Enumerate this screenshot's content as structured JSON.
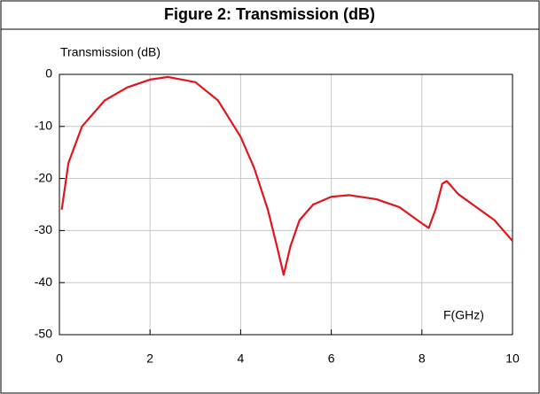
{
  "chart_data": {
    "type": "line",
    "title": "Figure 2: Transmission (dB)",
    "y_label": "Transmission (dB)",
    "x_label": "F(GHz)",
    "x": [
      0.05,
      0.2,
      0.5,
      1,
      1.5,
      2,
      2.4,
      3,
      3.5,
      4,
      4.3,
      4.6,
      4.8,
      4.95,
      5.1,
      5.3,
      5.6,
      6,
      6.4,
      7,
      7.5,
      7.9,
      8.15,
      8.3,
      8.45,
      8.55,
      8.8,
      9.2,
      9.6,
      10
    ],
    "values": [
      -26,
      -17,
      -10,
      -5,
      -2.5,
      -1,
      -0.5,
      -1.5,
      -5,
      -12,
      -18,
      -26,
      -33,
      -38.5,
      -33,
      -28,
      -25,
      -23.5,
      -23.2,
      -24,
      -25.5,
      -28,
      -29.5,
      -26,
      -21,
      -20.5,
      -23,
      -25.5,
      -28,
      -32
    ],
    "color": "#e0161b",
    "xlim": [
      0,
      10
    ],
    "xticks": [
      0,
      2,
      4,
      6,
      8,
      10
    ],
    "ylim": [
      -50,
      0
    ],
    "yticks": [
      0,
      -10,
      -20,
      -30,
      -40,
      -50
    ],
    "grid": true
  }
}
